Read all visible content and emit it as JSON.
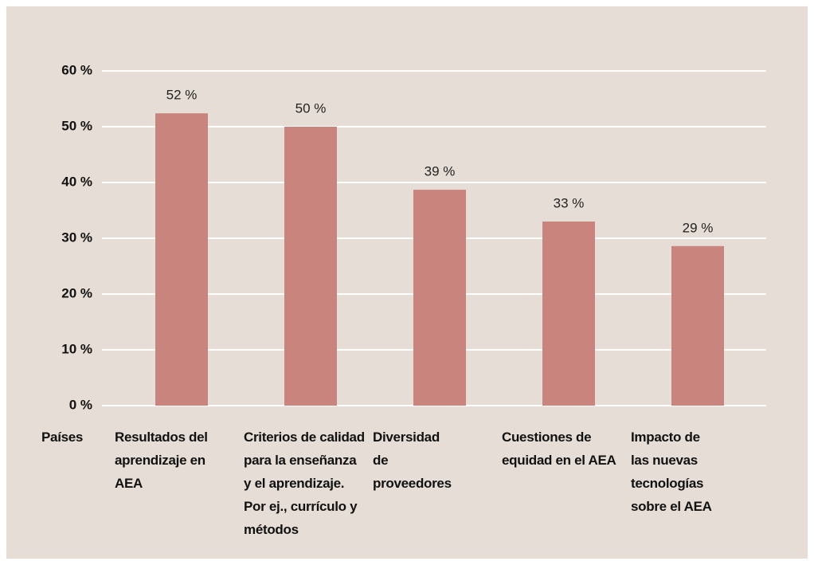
{
  "chart_data": {
    "type": "bar",
    "x_label": "Países",
    "categories": [
      "Resultados del\naprendizaje en\nAEA",
      "Criterios de calidad\npara la enseñanza\ny el aprendizaje.\nPor ej., currículo y\nmétodos",
      "Diversidad\nde\nproveedores",
      "Cuestiones de\nequidad en el AEA",
      "Impacto de\nlas nuevas\ntecnologías\nsobre el AEA"
    ],
    "values": [
      52.4,
      50,
      38.7,
      33,
      28.6
    ],
    "value_labels": [
      "52 %",
      "50 %",
      "39 %",
      "33 %",
      "29 %"
    ],
    "color": "#c9847d",
    "ylim": [
      0,
      60
    ],
    "yticks": [
      {
        "value": 0,
        "label": "0 %"
      },
      {
        "value": 10,
        "label": "10 %"
      },
      {
        "value": 20,
        "label": "20 %"
      },
      {
        "value": 30,
        "label": "30 %"
      },
      {
        "value": 40,
        "label": "40 %"
      },
      {
        "value": 50,
        "label": "50 %"
      },
      {
        "value": 60,
        "label": "60 %"
      }
    ],
    "grid": true
  }
}
